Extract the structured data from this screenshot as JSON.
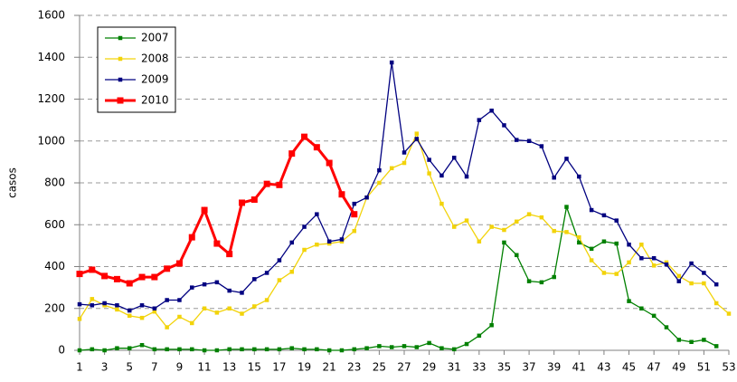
{
  "chart_data": {
    "type": "line",
    "y_label": "casos",
    "x": [
      1,
      2,
      3,
      4,
      5,
      6,
      7,
      8,
      9,
      10,
      11,
      12,
      13,
      14,
      15,
      16,
      17,
      18,
      19,
      20,
      21,
      22,
      23,
      24,
      25,
      26,
      27,
      28,
      29,
      30,
      31,
      32,
      33,
      34,
      35,
      36,
      37,
      38,
      39,
      40,
      41,
      42,
      43,
      44,
      45,
      46,
      47,
      48,
      49,
      50,
      51,
      52,
      53
    ],
    "xlim": [
      1,
      53
    ],
    "xticks": [
      1,
      3,
      5,
      7,
      9,
      11,
      13,
      15,
      17,
      19,
      21,
      23,
      25,
      27,
      29,
      31,
      33,
      35,
      37,
      39,
      41,
      43,
      45,
      47,
      49,
      51,
      53
    ],
    "ylim": [
      0,
      1600
    ],
    "yticks": [
      0,
      200,
      400,
      600,
      800,
      1000,
      1200,
      1400,
      1600
    ],
    "grid": true,
    "legend": "upper left",
    "series": [
      {
        "name": "2007",
        "color": "#008000",
        "values": [
          0,
          5,
          0,
          10,
          10,
          25,
          5,
          5,
          5,
          5,
          0,
          0,
          5,
          5,
          5,
          5,
          5,
          10,
          5,
          5,
          0,
          0,
          5,
          10,
          20,
          15,
          20,
          15,
          35,
          10,
          5,
          30,
          70,
          120,
          515,
          455,
          330,
          325,
          350,
          685,
          515,
          485,
          520,
          510,
          235,
          200,
          165,
          110,
          50,
          40,
          50,
          20,
          null
        ]
      },
      {
        "name": "2008",
        "color": "#f2d30a",
        "values": [
          150,
          245,
          215,
          195,
          165,
          155,
          185,
          110,
          160,
          130,
          200,
          180,
          200,
          175,
          210,
          240,
          335,
          375,
          480,
          505,
          510,
          520,
          570,
          730,
          800,
          870,
          895,
          1035,
          845,
          700,
          590,
          620,
          520,
          590,
          575,
          615,
          650,
          635,
          570,
          565,
          540,
          430,
          370,
          365,
          420,
          505,
          405,
          420,
          355,
          320,
          320,
          225,
          175
        ]
      },
      {
        "name": "2009",
        "color": "#000080",
        "values": [
          220,
          215,
          225,
          215,
          190,
          215,
          200,
          240,
          240,
          300,
          315,
          325,
          285,
          275,
          340,
          370,
          430,
          515,
          590,
          650,
          520,
          530,
          700,
          730,
          860,
          1375,
          945,
          1010,
          910,
          835,
          920,
          830,
          1100,
          1145,
          1075,
          1005,
          1000,
          975,
          825,
          915,
          830,
          670,
          645,
          620,
          505,
          440,
          440,
          410,
          330,
          415,
          370,
          315,
          null
        ]
      },
      {
        "name": "2010",
        "color": "#ff0000",
        "values": [
          365,
          385,
          355,
          340,
          320,
          350,
          350,
          390,
          415,
          540,
          670,
          510,
          460,
          705,
          720,
          795,
          790,
          940,
          1020,
          970,
          895,
          745,
          650,
          null,
          null,
          null,
          null,
          null,
          null,
          null,
          null,
          null,
          null,
          null,
          null,
          null,
          null,
          null,
          null,
          null,
          null,
          null,
          null,
          null,
          null,
          null,
          null,
          null,
          null,
          null,
          null,
          null,
          null
        ]
      }
    ]
  }
}
